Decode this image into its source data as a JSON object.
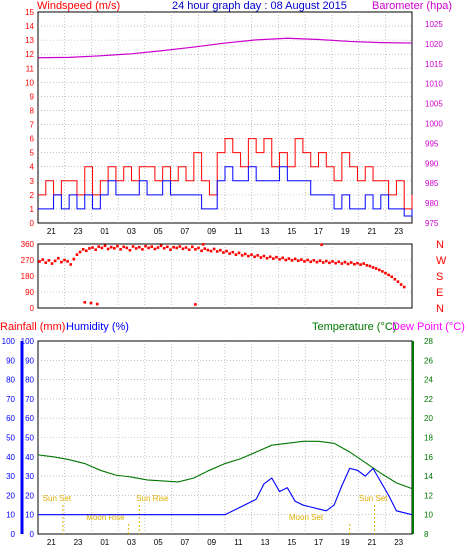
{
  "title": "24 hour graph day : 08 August 2015",
  "colors": {
    "wind_speed": "#ff0000",
    "wind_avg": "#0000ff",
    "barometer": "#cc00cc",
    "direction": "#ff0000",
    "rainfall": "#ff0000",
    "humidity": "#0000ff",
    "temperature": "#007700",
    "dew_point": "#ff00ff",
    "grid": "#a0a0a0",
    "sun_moon": "#e0b000"
  },
  "chart_data": [
    {
      "type": "line",
      "name": "wind-barometer",
      "left_label": "Windspeed (m/s)",
      "right_label": "Barometer (hpa)",
      "x_ticks": [
        "21",
        "23",
        "01",
        "03",
        "05",
        "07",
        "09",
        "11",
        "13",
        "15",
        "17",
        "19",
        "21",
        "23"
      ],
      "y_left_ticks": [
        "0",
        "1",
        "2",
        "3",
        "4",
        "5",
        "6",
        "7",
        "8",
        "9",
        "10",
        "11",
        "12",
        "13",
        "14",
        "15"
      ],
      "y_right_ticks": [
        "975",
        "980",
        "985",
        "990",
        "995",
        "1000",
        "1005",
        "1010",
        "1015",
        "1020",
        "1025"
      ],
      "ylim_left": [
        0,
        15
      ],
      "ylim_right": [
        975,
        1028
      ],
      "x_range_hours": [
        0,
        24
      ],
      "series": [
        {
          "key": "barometer",
          "axis": "right",
          "x": [
            0,
            2,
            4,
            6,
            8,
            10,
            12,
            14,
            16,
            18,
            20,
            22,
            24
          ],
          "y": [
            1016.5,
            1016.6,
            1017,
            1017.5,
            1018.3,
            1019.2,
            1020.2,
            1021,
            1021.4,
            1021.1,
            1020.6,
            1020.3,
            1020.2
          ]
        },
        {
          "key": "wind_speed",
          "axis": "left",
          "x": [
            0,
            0.5,
            1,
            1.5,
            2,
            2.5,
            3,
            3.5,
            4,
            4.5,
            5,
            5.5,
            6,
            6.5,
            7,
            7.5,
            8,
            8.5,
            9,
            9.5,
            10,
            10.5,
            11,
            11.5,
            12,
            12.5,
            13,
            13.5,
            14,
            14.5,
            15,
            15.5,
            16,
            16.5,
            17,
            17.5,
            18,
            18.5,
            19,
            19.5,
            20,
            20.5,
            21,
            21.5,
            22,
            22.5,
            23,
            23.5,
            24
          ],
          "y": [
            2,
            3,
            2,
            3,
            3,
            2,
            4,
            2,
            3,
            4,
            3,
            4,
            3,
            4,
            4,
            3,
            4,
            3,
            4,
            3,
            5,
            3,
            2,
            5,
            6,
            5,
            4,
            6,
            5,
            6,
            4,
            5,
            4,
            6,
            5,
            4,
            5,
            4,
            3,
            5,
            4,
            3,
            4,
            3,
            3,
            2,
            3,
            1,
            2
          ]
        },
        {
          "key": "wind_avg",
          "axis": "left",
          "x": [
            0,
            0.5,
            1,
            1.5,
            2,
            2.5,
            3,
            3.5,
            4,
            4.5,
            5,
            5.5,
            6,
            6.5,
            7,
            7.5,
            8,
            8.5,
            9,
            9.5,
            10,
            10.5,
            11,
            11.5,
            12,
            12.5,
            13,
            13.5,
            14,
            14.5,
            15,
            15.5,
            16,
            16.5,
            17,
            17.5,
            18,
            18.5,
            19,
            19.5,
            20,
            20.5,
            21,
            21.5,
            22,
            22.5,
            23,
            23.5,
            24
          ],
          "y": [
            1,
            1,
            2,
            1,
            2,
            1,
            2,
            1,
            2,
            3,
            2,
            2,
            2,
            3,
            2,
            2,
            3,
            2,
            2,
            2,
            2,
            1,
            1,
            3,
            4,
            3,
            3,
            4,
            3,
            3,
            3,
            4,
            3,
            3,
            3,
            2,
            2,
            2,
            1,
            2,
            1,
            1,
            2,
            1,
            2,
            1,
            1,
            0.5,
            1
          ]
        }
      ]
    },
    {
      "type": "scatter",
      "name": "wind-direction",
      "left_ticks": [
        "0",
        "90",
        "180",
        "270",
        "360"
      ],
      "compass": [
        "N",
        "W",
        "S",
        "E",
        "N"
      ],
      "ylim": [
        0,
        360
      ],
      "x_range_hours": [
        0,
        24
      ],
      "points": [
        [
          0.1,
          262
        ],
        [
          0.3,
          272
        ],
        [
          0.5,
          255
        ],
        [
          0.7,
          268
        ],
        [
          0.9,
          250
        ],
        [
          1.1,
          265
        ],
        [
          1.3,
          280
        ],
        [
          1.5,
          258
        ],
        [
          1.7,
          270
        ],
        [
          1.9,
          262
        ],
        [
          2.1,
          245
        ],
        [
          2.3,
          275
        ],
        [
          2.5,
          300
        ],
        [
          2.7,
          315
        ],
        [
          2.9,
          330
        ],
        [
          3.1,
          322
        ],
        [
          3.3,
          335
        ],
        [
          3.5,
          340
        ],
        [
          3.7,
          328
        ],
        [
          3.9,
          345
        ],
        [
          4.1,
          338
        ],
        [
          4.3,
          350
        ],
        [
          4.5,
          332
        ],
        [
          4.7,
          342
        ],
        [
          4.9,
          336
        ],
        [
          5.1,
          348
        ],
        [
          5.3,
          330
        ],
        [
          5.5,
          344
        ],
        [
          5.7,
          338
        ],
        [
          5.9,
          325
        ],
        [
          6.1,
          346
        ],
        [
          6.3,
          335
        ],
        [
          6.5,
          342
        ],
        [
          6.7,
          330
        ],
        [
          6.9,
          348
        ],
        [
          7.1,
          338
        ],
        [
          7.3,
          345
        ],
        [
          7.5,
          332
        ],
        [
          7.7,
          340
        ],
        [
          7.9,
          350
        ],
        [
          8.1,
          336
        ],
        [
          8.3,
          344
        ],
        [
          8.5,
          328
        ],
        [
          8.7,
          342
        ],
        [
          8.9,
          338
        ],
        [
          9.1,
          346
        ],
        [
          9.3,
          333
        ],
        [
          9.5,
          340
        ],
        [
          9.7,
          328
        ],
        [
          9.9,
          344
        ],
        [
          10.1,
          330
        ],
        [
          10.3,
          338
        ],
        [
          10.5,
          322
        ],
        [
          10.7,
          334
        ],
        [
          10.9,
          326
        ],
        [
          11.1,
          320
        ],
        [
          11.3,
          332
        ],
        [
          11.5,
          318
        ],
        [
          11.7,
          325
        ],
        [
          11.9,
          312
        ],
        [
          12.1,
          320
        ],
        [
          12.3,
          306
        ],
        [
          12.5,
          314
        ],
        [
          12.7,
          300
        ],
        [
          12.9,
          310
        ],
        [
          13.1,
          296
        ],
        [
          13.3,
          304
        ],
        [
          13.5,
          292
        ],
        [
          13.7,
          300
        ],
        [
          13.9,
          288
        ],
        [
          14.1,
          296
        ],
        [
          14.3,
          284
        ],
        [
          14.5,
          292
        ],
        [
          14.7,
          280
        ],
        [
          14.9,
          288
        ],
        [
          15.1,
          278
        ],
        [
          15.3,
          286
        ],
        [
          15.5,
          274
        ],
        [
          15.7,
          282
        ],
        [
          15.9,
          270
        ],
        [
          16.1,
          278
        ],
        [
          16.3,
          268
        ],
        [
          16.5,
          276
        ],
        [
          16.7,
          266
        ],
        [
          16.9,
          272
        ],
        [
          17.1,
          262
        ],
        [
          17.3,
          270
        ],
        [
          17.5,
          260
        ],
        [
          17.7,
          268
        ],
        [
          17.9,
          258
        ],
        [
          18.1,
          266
        ],
        [
          18.3,
          256
        ],
        [
          18.5,
          264
        ],
        [
          18.7,
          254
        ],
        [
          18.9,
          262
        ],
        [
          19.1,
          252
        ],
        [
          19.3,
          260
        ],
        [
          19.5,
          250
        ],
        [
          19.7,
          258
        ],
        [
          19.9,
          248
        ],
        [
          20.1,
          256
        ],
        [
          20.3,
          246
        ],
        [
          20.5,
          252
        ],
        [
          20.7,
          244
        ],
        [
          20.9,
          250
        ],
        [
          21.1,
          240
        ],
        [
          21.3,
          236
        ],
        [
          21.5,
          228
        ],
        [
          21.7,
          222
        ],
        [
          21.9,
          214
        ],
        [
          22.1,
          206
        ],
        [
          22.3,
          196
        ],
        [
          22.5,
          186
        ],
        [
          22.7,
          176
        ],
        [
          22.9,
          162
        ],
        [
          23.1,
          148
        ],
        [
          23.3,
          132
        ],
        [
          23.5,
          118
        ],
        [
          3.0,
          32
        ],
        [
          3.4,
          28
        ],
        [
          3.8,
          22
        ],
        [
          10.6,
          358
        ],
        [
          18.2,
          356
        ],
        [
          10.1,
          20
        ]
      ]
    },
    {
      "type": "line",
      "name": "rain-humidity-temperature",
      "labels": [
        "Rainfall (mm)",
        "Humidity (%)",
        "Temperature (°C)",
        "Dew Point (°C)"
      ],
      "y_outer_ticks": [
        "0",
        "10",
        "20",
        "30",
        "40",
        "50",
        "60",
        "70",
        "80",
        "90",
        "100"
      ],
      "y_left_ticks": [
        "0",
        "10",
        "20",
        "30",
        "40",
        "50",
        "60",
        "70",
        "80",
        "90",
        "100"
      ],
      "y_right_ticks": [
        "8",
        "10",
        "12",
        "14",
        "16",
        "18",
        "20",
        "22",
        "24",
        "26",
        "28"
      ],
      "ylim_left": [
        0,
        100
      ],
      "ylim_right": [
        8,
        28
      ],
      "x_ticks": [
        "21",
        "23",
        "01",
        "03",
        "05",
        "07",
        "09",
        "11",
        "13",
        "15",
        "17",
        "19",
        "21",
        "23"
      ],
      "series": [
        {
          "key": "temperature",
          "axis": "right",
          "x": [
            0,
            1,
            2,
            3,
            4,
            5,
            6,
            7,
            8,
            9,
            10,
            11,
            12,
            13,
            14,
            15,
            16,
            17,
            18,
            19,
            20,
            21,
            22,
            23,
            24
          ],
          "y": [
            16.2,
            16,
            15.7,
            15.3,
            14.6,
            14.1,
            13.9,
            13.6,
            13.5,
            13.4,
            13.8,
            14.6,
            15.3,
            15.8,
            16.5,
            17.2,
            17.4,
            17.6,
            17.6,
            17.4,
            16.5,
            15.4,
            14.3,
            13.3,
            12.7
          ]
        },
        {
          "key": "humidity",
          "axis": "left",
          "x": [
            0,
            1,
            2,
            3,
            4,
            5,
            6,
            7,
            8,
            9,
            10,
            11,
            12,
            13,
            14,
            14.5,
            15,
            15.5,
            16,
            16.5,
            17,
            17.5,
            18,
            18.5,
            19,
            19.5,
            20,
            20.5,
            21,
            21.5,
            22,
            22.5,
            23,
            24
          ],
          "y": [
            10,
            10,
            10,
            10,
            10,
            10,
            10,
            10,
            10,
            10,
            10,
            10,
            10,
            14,
            18,
            26,
            29,
            22,
            24,
            17,
            15,
            14,
            13,
            12,
            15,
            25,
            34,
            33,
            30,
            34,
            27,
            20,
            12,
            10
          ]
        }
      ],
      "annotations": [
        {
          "text": "Sun Set",
          "x": 0.3
        },
        {
          "text": "Sun Rise",
          "x": 6.3
        },
        {
          "text": "Sun Set",
          "x": 20.6
        },
        {
          "text": "Moon Rise",
          "x": 3.1
        },
        {
          "text": "Moon Set",
          "x": 16.1
        }
      ]
    }
  ]
}
